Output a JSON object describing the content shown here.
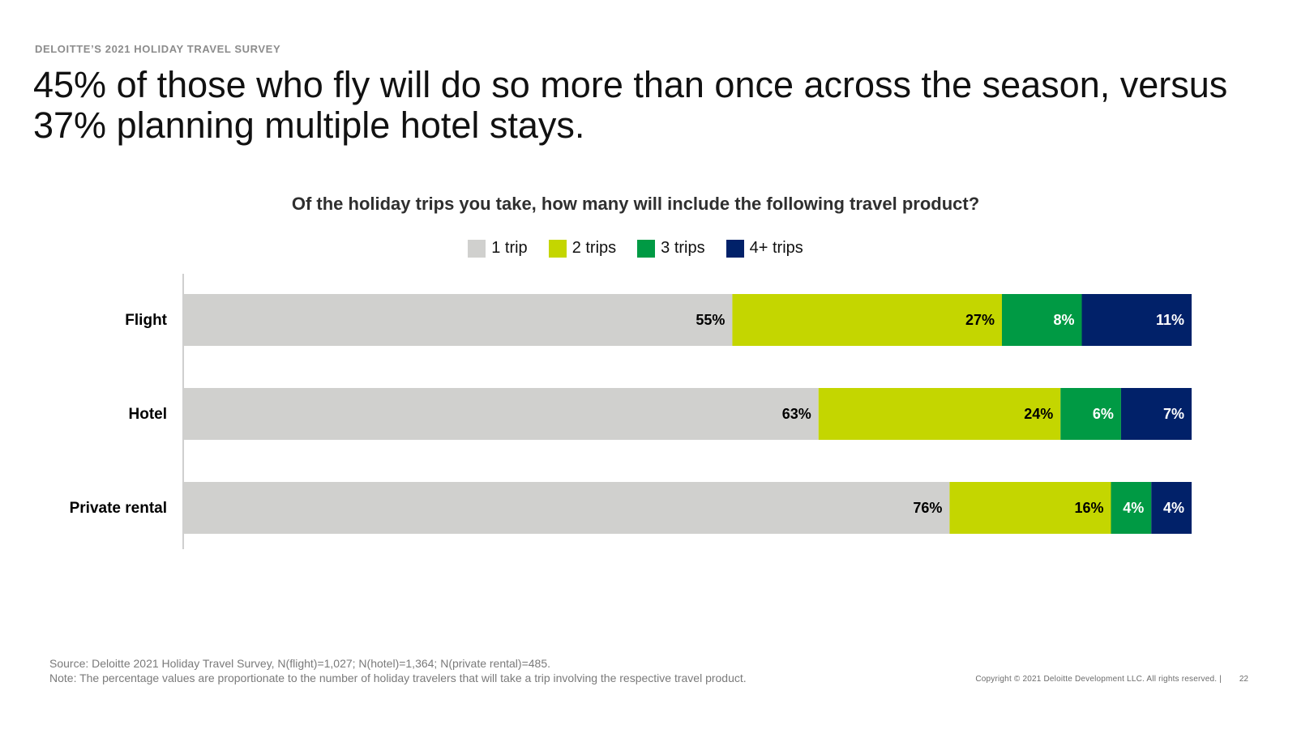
{
  "header": {
    "eyebrow": "DELOITTE’S 2021 HOLIDAY TRAVEL SURVEY",
    "headline": "45% of those who fly will do so more than once across the season, versus 37% planning multiple hotel stays."
  },
  "footer": {
    "source": "Source: Deloitte 2021 Holiday Travel Survey, N(flight)=1,027; N(hotel)=1,364; N(private rental)=485.",
    "note": "Note: The percentage values are proportionate to the number of holiday travelers that will take a trip involving the respective travel product.",
    "copyright": "Copyright © 2021 Deloitte Development LLC. All rights reserved.  |",
    "page_number": "22"
  },
  "chart_data": {
    "type": "bar",
    "orientation": "horizontal",
    "stacked": true,
    "title": "Of the holiday trips you take, how many will include the following travel product?",
    "categories": [
      "Flight",
      "Hotel",
      "Private rental"
    ],
    "legend_position": "top",
    "series": [
      {
        "name": "1 trip",
        "color": "#d0d0ce",
        "label_color": "#000000",
        "values": [
          55,
          63,
          76
        ],
        "labels": [
          "55%",
          "63%",
          "76%"
        ]
      },
      {
        "name": "2 trips",
        "color": "#c4d600",
        "label_color": "#000000",
        "values": [
          27,
          24,
          16
        ],
        "labels": [
          "27%",
          "24%",
          "16%"
        ]
      },
      {
        "name": "3 trips",
        "color": "#009a44",
        "label_color": "#ffffff",
        "values": [
          8,
          6,
          4
        ],
        "labels": [
          "8%",
          "6%",
          "4%"
        ]
      },
      {
        "name": "4+ trips",
        "color": "#012169",
        "label_color": "#ffffff",
        "values": [
          11,
          7,
          4
        ],
        "labels": [
          "11%",
          "7%",
          "4%"
        ]
      }
    ]
  }
}
